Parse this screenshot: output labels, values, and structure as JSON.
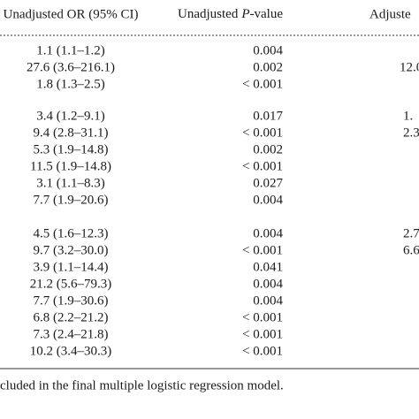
{
  "table": {
    "header": {
      "or": "Unadjusted OR (95% CI)",
      "p_value": [
        "Unadjusted",
        "P",
        "-value"
      ],
      "adjusted": "Adjuste"
    },
    "groups": [
      [
        [
          "1.1 (1.1–1.2)",
          "0.004"
        ],
        [
          "27.6 (3.6–216.1)",
          "0.002",
          "12.0"
        ],
        [
          "1.8 (1.3–2.5)",
          "< 0.001"
        ]
      ],
      [
        [
          "3.4 (1.2–9.1)",
          "0.017",
          "1."
        ],
        [
          "9.4 (2.8–31.1)",
          "< 0.001",
          "2.3"
        ],
        [
          "5.3 (1.9–14.8)",
          "0.002"
        ],
        [
          "11.5 (1.9–14.8)",
          "< 0.001"
        ],
        [
          "3.1 (1.1–8.3)",
          "0.027"
        ],
        [
          "7.7 (1.9–20.6)",
          "0.004"
        ]
      ],
      [
        [
          "4.5 (1.6–12.3)",
          "0.004",
          "2.7"
        ],
        [
          "9.7 (3.2–30.0)",
          "< 0.001",
          "6.6"
        ],
        [
          "3.9 (1.1–14.4)",
          "0.041"
        ],
        [
          "21.2 (5.6–79.3)",
          "0.004"
        ],
        [
          "7.7 (1.9–30.6)",
          "0.004"
        ],
        [
          "6.8 (2.2–21.2)",
          "< 0.001"
        ],
        [
          "7.3 (2.4–21.8)",
          "< 0.001"
        ],
        [
          "10.2 (3.4–30.3)",
          "< 0.001"
        ]
      ]
    ],
    "footnote": "cluded in the final multiple logistic regression model."
  }
}
